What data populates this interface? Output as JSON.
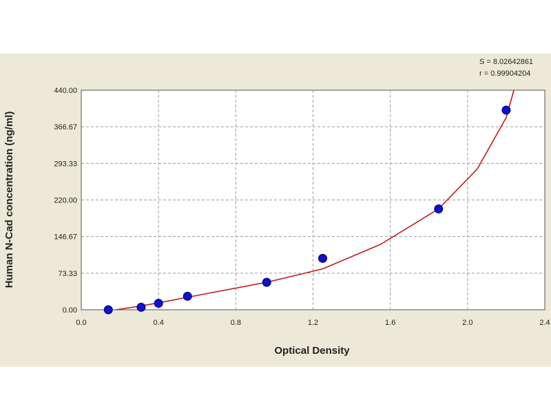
{
  "chart_data": {
    "type": "scatter",
    "xlabel": "Optical Density",
    "ylabel": "Human N-Cad concentration (ng/ml)",
    "xlim": [
      0.0,
      2.4
    ],
    "ylim": [
      0.0,
      440.0
    ],
    "x_ticks": [
      "0.0",
      "0.4",
      "0.8",
      "1.2",
      "1.6",
      "2.0",
      "2.4"
    ],
    "y_ticks": [
      "0.00",
      "73.33",
      "146.67",
      "220.00",
      "293.33",
      "366.67",
      "440.00"
    ],
    "stats": {
      "s": "S = 8.02642861",
      "r": "r = 0.99904204"
    },
    "grid": true,
    "series": [
      {
        "kind": "points",
        "color": "#1010d0",
        "x": [
          0.14,
          0.31,
          0.4,
          0.55,
          0.96,
          1.25,
          1.85,
          2.2
        ],
        "y": [
          0.0,
          5.0,
          13.0,
          27.0,
          55.0,
          103.0,
          202.0,
          400.0
        ]
      },
      {
        "kind": "fit-curve",
        "color": "#c01818",
        "x": [
          0.18,
          0.3,
          0.4,
          0.55,
          0.7,
          0.96,
          1.25,
          1.55,
          1.85,
          2.05,
          2.2,
          2.24
        ],
        "y": [
          0.0,
          7.0,
          14.0,
          25.0,
          36.0,
          55.0,
          82.0,
          131.0,
          202.0,
          282.0,
          385.0,
          440.0
        ]
      }
    ]
  }
}
